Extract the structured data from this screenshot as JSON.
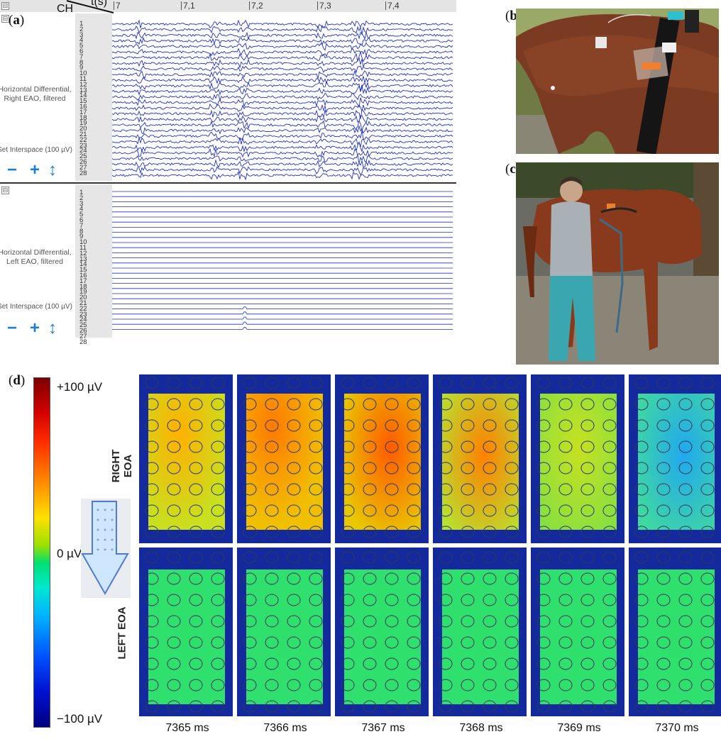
{
  "labels": {
    "a": "a",
    "b": "b",
    "c": "c",
    "d": "d"
  },
  "panel_a": {
    "ch_label": "CH",
    "time_label": "t(s)",
    "time_ticks": [
      "7",
      "7,1",
      "7,2",
      "7,3",
      "7,4"
    ],
    "channel_numbers": "1\n2\n3\n4\n5\n6\n7\n8\n9\n10\n11\n12\n13\n14\n15\n16\n17\n18\n19\n20\n21\n22\n23\n24\n25\n26\n27\n28",
    "groups": [
      {
        "caption": "Horizontal Differential, Right EAO, filtered",
        "interspace": "Set Interspace (100 µV)",
        "controls": [
          "−",
          "+",
          "↕"
        ]
      },
      {
        "caption": "Horizontal Differential, Left EAO, filtered",
        "interspace": "Set Interspace (100 µV)",
        "controls": [
          "−",
          "+",
          "↕"
        ]
      }
    ],
    "toggle_symbol": "⊟"
  },
  "panel_d": {
    "colorbar": {
      "top": "+100 µV",
      "mid": "0 µV",
      "bottom": "−100 µV"
    },
    "rows": [
      "RIGHT EOA",
      "LEFT EOA"
    ],
    "times": [
      "7365 ms",
      "7366 ms",
      "7367 ms",
      "7368 ms",
      "7369 ms",
      "7370 ms"
    ]
  },
  "colors": {
    "trace": "#1f2fd0",
    "map_border": "#142a9c",
    "map_zero": "#2ee06a",
    "control_blue": "#1a7fd6"
  }
}
